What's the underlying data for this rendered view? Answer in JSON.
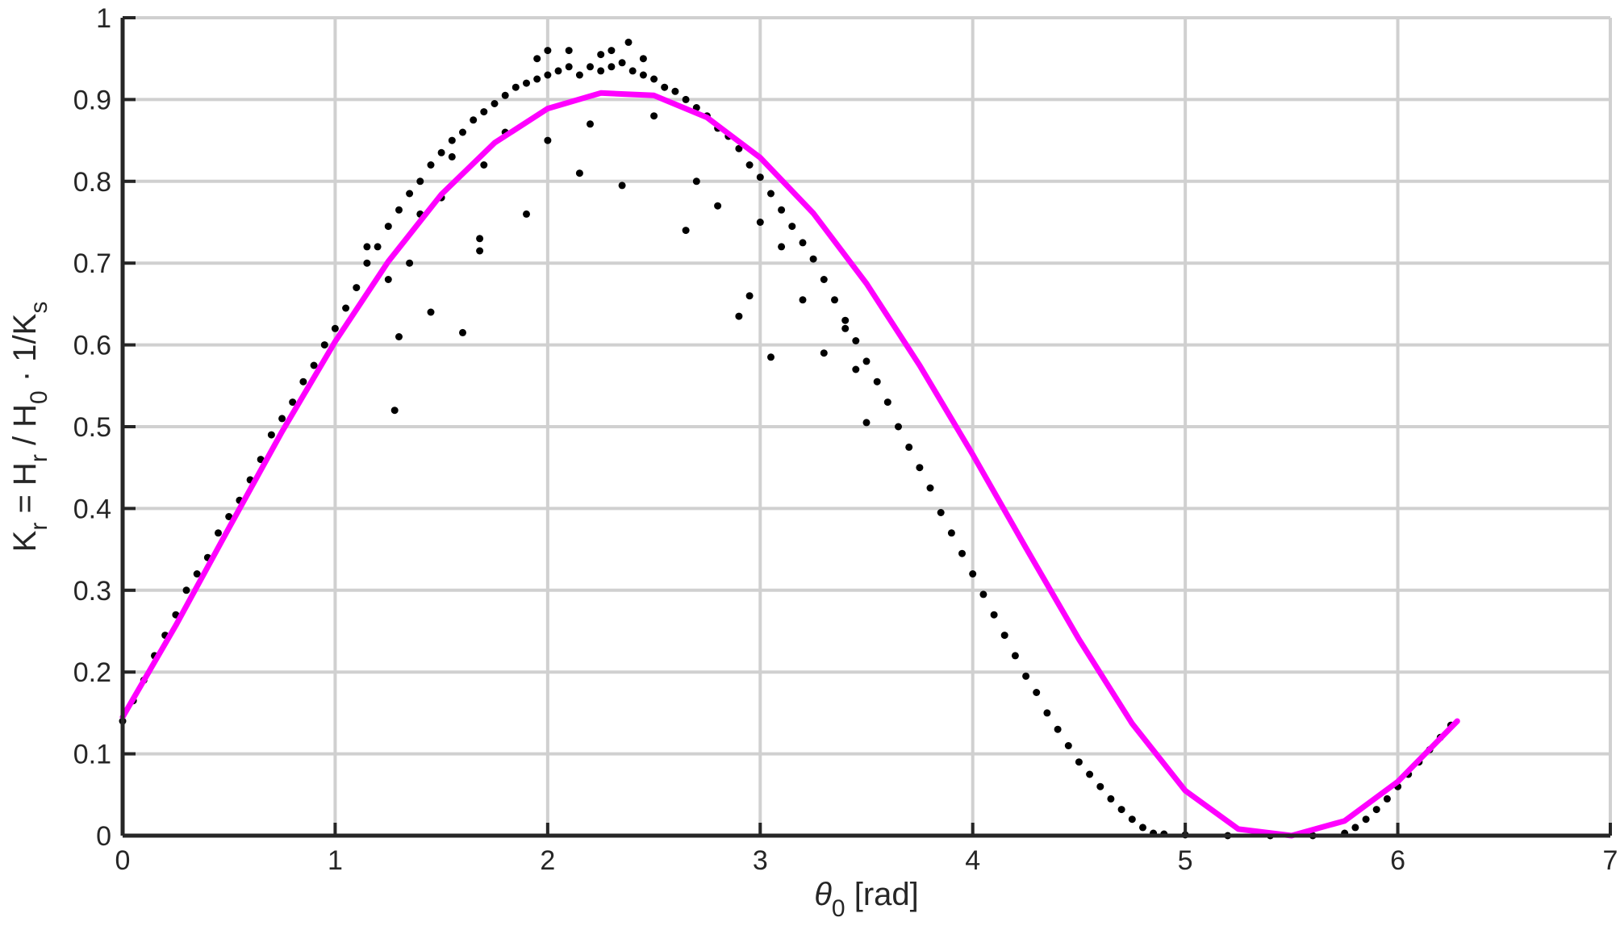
{
  "chart_data": {
    "type": "scatter",
    "xlabel": {
      "symbol": "θ",
      "subscript": "0",
      "rest": " [rad]"
    },
    "ylabel": {
      "parts": [
        {
          "t": "K",
          "sub": false
        },
        {
          "t": "r",
          "sub": true
        },
        {
          "t": " = H",
          "sub": false
        },
        {
          "t": "r",
          "sub": true
        },
        {
          "t": " / H",
          "sub": false
        },
        {
          "t": "0",
          "sub": true
        },
        {
          "t": " · 1/K",
          "sub": false
        },
        {
          "t": "s",
          "sub": true
        }
      ]
    },
    "xlim": [
      0,
      7
    ],
    "ylim": [
      0,
      1
    ],
    "xticks": [
      0,
      1,
      2,
      3,
      4,
      5,
      6,
      7
    ],
    "yticks": [
      0,
      0.1,
      0.2,
      0.3,
      0.4,
      0.5,
      0.6,
      0.7,
      0.8,
      0.9,
      1
    ],
    "xtick_labels": [
      "0",
      "1",
      "2",
      "3",
      "4",
      "5",
      "6",
      "7"
    ],
    "ytick_labels": [
      "0",
      "0.1",
      "0.2",
      "0.3",
      "0.4",
      "0.5",
      "0.6",
      "0.7",
      "0.8",
      "0.9",
      "1"
    ],
    "grid": true,
    "series": [
      {
        "kind": "scatter",
        "color": "#000000",
        "points": [
          [
            0.0,
            0.14
          ],
          [
            0.05,
            0.165
          ],
          [
            0.1,
            0.19
          ],
          [
            0.15,
            0.22
          ],
          [
            0.2,
            0.245
          ],
          [
            0.25,
            0.27
          ],
          [
            0.3,
            0.3
          ],
          [
            0.35,
            0.32
          ],
          [
            0.4,
            0.34
          ],
          [
            0.45,
            0.37
          ],
          [
            0.5,
            0.39
          ],
          [
            0.55,
            0.41
          ],
          [
            0.6,
            0.435
          ],
          [
            0.65,
            0.46
          ],
          [
            0.7,
            0.49
          ],
          [
            0.75,
            0.51
          ],
          [
            0.8,
            0.53
          ],
          [
            0.85,
            0.555
          ],
          [
            0.9,
            0.575
          ],
          [
            0.95,
            0.6
          ],
          [
            1.0,
            0.62
          ],
          [
            1.05,
            0.645
          ],
          [
            1.1,
            0.67
          ],
          [
            1.15,
            0.7
          ],
          [
            1.2,
            0.72
          ],
          [
            1.25,
            0.745
          ],
          [
            1.3,
            0.765
          ],
          [
            1.35,
            0.785
          ],
          [
            1.4,
            0.8
          ],
          [
            1.45,
            0.82
          ],
          [
            1.5,
            0.835
          ],
          [
            1.55,
            0.85
          ],
          [
            1.6,
            0.86
          ],
          [
            1.65,
            0.875
          ],
          [
            1.7,
            0.885
          ],
          [
            1.75,
            0.895
          ],
          [
            1.8,
            0.905
          ],
          [
            1.85,
            0.915
          ],
          [
            1.9,
            0.92
          ],
          [
            1.95,
            0.925
          ],
          [
            2.0,
            0.93
          ],
          [
            2.05,
            0.935
          ],
          [
            2.1,
            0.94
          ],
          [
            2.15,
            0.93
          ],
          [
            2.2,
            0.94
          ],
          [
            2.25,
            0.935
          ],
          [
            2.3,
            0.94
          ],
          [
            2.35,
            0.945
          ],
          [
            2.4,
            0.935
          ],
          [
            2.45,
            0.93
          ],
          [
            2.5,
            0.925
          ],
          [
            2.55,
            0.915
          ],
          [
            2.6,
            0.91
          ],
          [
            2.65,
            0.9
          ],
          [
            2.7,
            0.89
          ],
          [
            2.75,
            0.88
          ],
          [
            2.8,
            0.865
          ],
          [
            2.85,
            0.855
          ],
          [
            2.9,
            0.84
          ],
          [
            2.95,
            0.82
          ],
          [
            3.0,
            0.805
          ],
          [
            3.05,
            0.785
          ],
          [
            3.1,
            0.765
          ],
          [
            3.15,
            0.745
          ],
          [
            3.2,
            0.725
          ],
          [
            3.25,
            0.705
          ],
          [
            3.3,
            0.68
          ],
          [
            3.35,
            0.655
          ],
          [
            3.4,
            0.63
          ],
          [
            3.45,
            0.605
          ],
          [
            3.5,
            0.58
          ],
          [
            3.55,
            0.555
          ],
          [
            3.6,
            0.53
          ],
          [
            3.65,
            0.5
          ],
          [
            3.7,
            0.475
          ],
          [
            3.75,
            0.45
          ],
          [
            3.8,
            0.425
          ],
          [
            3.85,
            0.395
          ],
          [
            3.9,
            0.37
          ],
          [
            3.95,
            0.345
          ],
          [
            4.0,
            0.32
          ],
          [
            4.05,
            0.295
          ],
          [
            4.1,
            0.27
          ],
          [
            4.15,
            0.245
          ],
          [
            4.2,
            0.22
          ],
          [
            4.25,
            0.195
          ],
          [
            4.3,
            0.175
          ],
          [
            4.35,
            0.15
          ],
          [
            4.4,
            0.13
          ],
          [
            4.45,
            0.11
          ],
          [
            4.5,
            0.09
          ],
          [
            4.55,
            0.075
          ],
          [
            4.6,
            0.06
          ],
          [
            4.65,
            0.045
          ],
          [
            4.7,
            0.032
          ],
          [
            4.75,
            0.02
          ],
          [
            4.8,
            0.01
          ],
          [
            4.85,
            0.003
          ],
          [
            4.9,
            0.002
          ],
          [
            5.0,
            0.001
          ],
          [
            5.2,
            0.0
          ],
          [
            5.4,
            0.0
          ],
          [
            5.6,
            0.0
          ],
          [
            5.75,
            0.003
          ],
          [
            5.8,
            0.01
          ],
          [
            5.85,
            0.02
          ],
          [
            5.9,
            0.032
          ],
          [
            5.95,
            0.045
          ],
          [
            6.0,
            0.06
          ],
          [
            6.05,
            0.075
          ],
          [
            6.1,
            0.09
          ],
          [
            6.15,
            0.105
          ],
          [
            6.2,
            0.12
          ],
          [
            6.25,
            0.135
          ],
          [
            1.28,
            0.52
          ],
          [
            1.6,
            0.615
          ],
          [
            1.45,
            0.64
          ],
          [
            1.3,
            0.61
          ],
          [
            1.68,
            0.715
          ],
          [
            1.68,
            0.73
          ],
          [
            1.9,
            0.76
          ],
          [
            2.15,
            0.81
          ],
          [
            2.35,
            0.795
          ],
          [
            2.9,
            0.635
          ],
          [
            3.05,
            0.585
          ],
          [
            3.5,
            0.505
          ],
          [
            3.3,
            0.59
          ],
          [
            3.2,
            0.655
          ],
          [
            2.95,
            0.66
          ],
          [
            2.65,
            0.74
          ],
          [
            1.25,
            0.68
          ],
          [
            1.35,
            0.7
          ],
          [
            1.5,
            0.78
          ],
          [
            1.7,
            0.82
          ],
          [
            2.0,
            0.85
          ],
          [
            2.2,
            0.87
          ],
          [
            2.5,
            0.88
          ],
          [
            2.7,
            0.8
          ],
          [
            2.8,
            0.77
          ],
          [
            3.0,
            0.75
          ],
          [
            3.1,
            0.72
          ],
          [
            3.4,
            0.62
          ],
          [
            3.45,
            0.57
          ],
          [
            1.15,
            0.72
          ],
          [
            1.4,
            0.76
          ],
          [
            1.55,
            0.83
          ],
          [
            1.8,
            0.86
          ],
          [
            2.1,
            0.96
          ],
          [
            2.3,
            0.96
          ],
          [
            2.38,
            0.97
          ],
          [
            2.0,
            0.96
          ],
          [
            1.95,
            0.95
          ],
          [
            2.25,
            0.955
          ],
          [
            2.45,
            0.95
          ]
        ]
      },
      {
        "kind": "line",
        "color": "#ff00ff",
        "x": [
          0.0,
          0.25,
          0.5,
          0.75,
          1.0,
          1.25,
          1.5,
          1.75,
          2.0,
          2.25,
          2.5,
          2.75,
          3.0,
          3.25,
          3.5,
          3.75,
          4.0,
          4.25,
          4.5,
          4.75,
          5.0,
          5.25,
          5.5,
          5.75,
          6.0,
          6.28
        ],
        "y": [
          0.145,
          0.257,
          0.376,
          0.494,
          0.604,
          0.702,
          0.784,
          0.847,
          0.889,
          0.908,
          0.905,
          0.878,
          0.829,
          0.761,
          0.675,
          0.575,
          0.466,
          0.352,
          0.24,
          0.137,
          0.055,
          0.008,
          0.0,
          0.018,
          0.066,
          0.14
        ]
      }
    ]
  }
}
